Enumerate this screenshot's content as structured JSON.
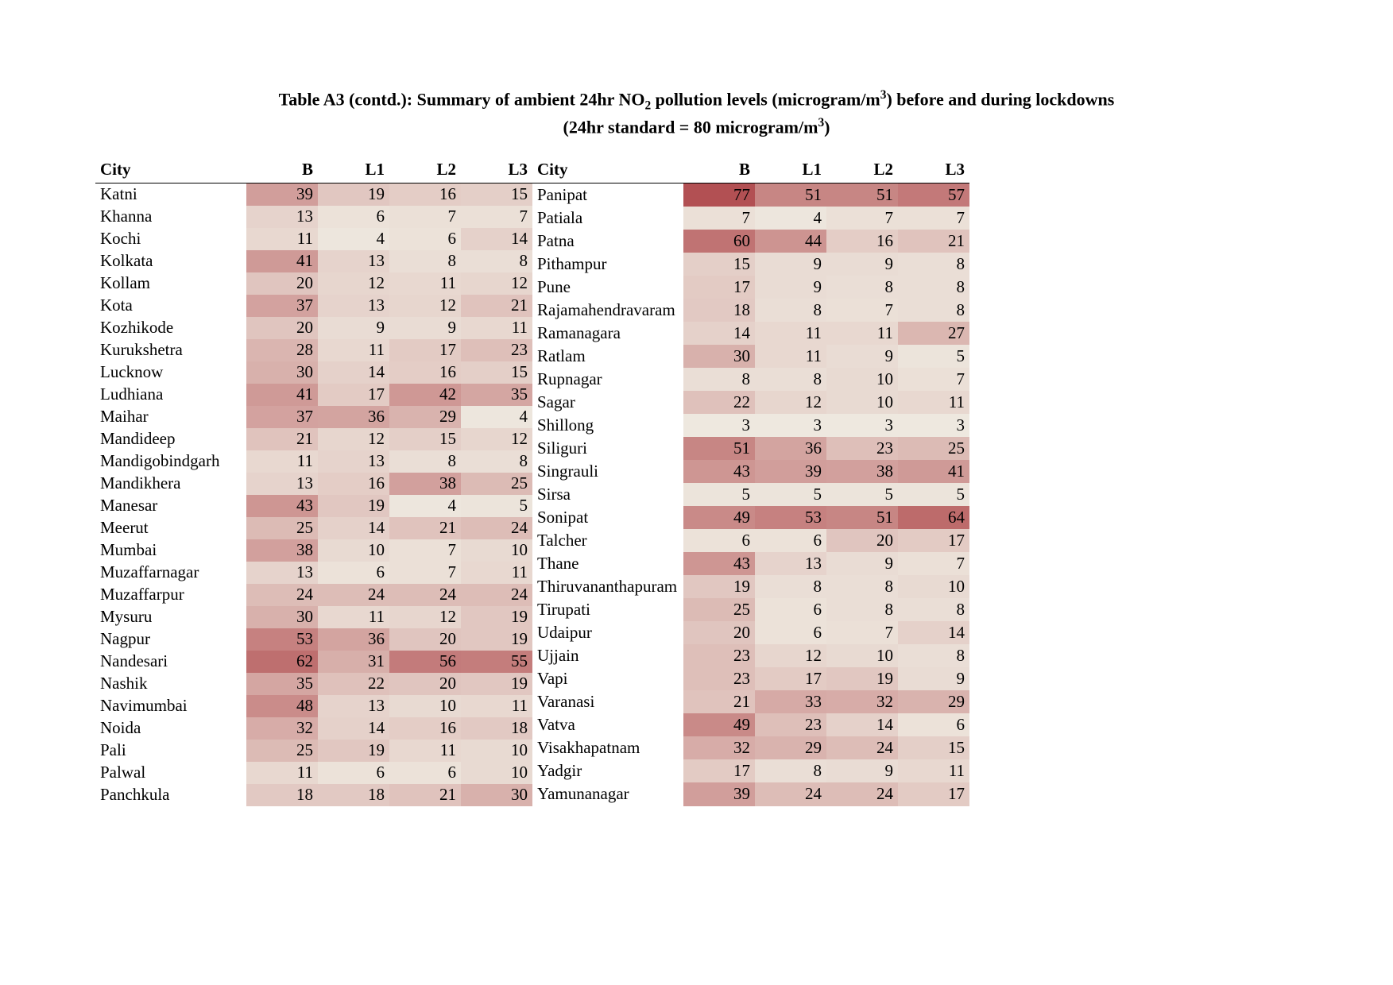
{
  "title_html": "Table A3 (contd.): Summary of ambient 24hr NO<sub>2</sub> pollution levels (microgram/m<sup>3</sup>) before and during lockdowns<br>(24hr standard = 80 microgram/m<sup>3</sup>)",
  "columns": [
    "City",
    "B",
    "L1",
    "L2",
    "L3"
  ],
  "heatmap": {
    "min": 3,
    "max": 80,
    "low_color": "#eee8df",
    "high_color": "#b04a4d"
  },
  "left_rows": [
    {
      "city": "Katni",
      "B": 39,
      "L1": 19,
      "L2": 16,
      "L3": 15
    },
    {
      "city": "Khanna",
      "B": 13,
      "L1": 6,
      "L2": 7,
      "L3": 7
    },
    {
      "city": "Kochi",
      "B": 11,
      "L1": 4,
      "L2": 6,
      "L3": 14
    },
    {
      "city": "Kolkata",
      "B": 41,
      "L1": 13,
      "L2": 8,
      "L3": 8
    },
    {
      "city": "Kollam",
      "B": 20,
      "L1": 12,
      "L2": 11,
      "L3": 12
    },
    {
      "city": "Kota",
      "B": 37,
      "L1": 13,
      "L2": 12,
      "L3": 21
    },
    {
      "city": "Kozhikode",
      "B": 20,
      "L1": 9,
      "L2": 9,
      "L3": 11
    },
    {
      "city": "Kurukshetra",
      "B": 28,
      "L1": 11,
      "L2": 17,
      "L3": 23
    },
    {
      "city": "Lucknow",
      "B": 30,
      "L1": 14,
      "L2": 16,
      "L3": 15
    },
    {
      "city": "Ludhiana",
      "B": 41,
      "L1": 17,
      "L2": 42,
      "L3": 35
    },
    {
      "city": "Maihar",
      "B": 37,
      "L1": 36,
      "L2": 29,
      "L3": 4
    },
    {
      "city": "Mandideep",
      "B": 21,
      "L1": 12,
      "L2": 15,
      "L3": 12
    },
    {
      "city": "Mandigobindgarh",
      "B": 11,
      "L1": 13,
      "L2": 8,
      "L3": 8
    },
    {
      "city": "Mandikhera",
      "B": 13,
      "L1": 16,
      "L2": 38,
      "L3": 25
    },
    {
      "city": "Manesar",
      "B": 43,
      "L1": 19,
      "L2": 4,
      "L3": 5
    },
    {
      "city": "Meerut",
      "B": 25,
      "L1": 14,
      "L2": 21,
      "L3": 24
    },
    {
      "city": "Mumbai",
      "B": 38,
      "L1": 10,
      "L2": 7,
      "L3": 10
    },
    {
      "city": "Muzaffarnagar",
      "B": 13,
      "L1": 6,
      "L2": 7,
      "L3": 11
    },
    {
      "city": "Muzaffarpur",
      "B": 24,
      "L1": 24,
      "L2": 24,
      "L3": 24
    },
    {
      "city": "Mysuru",
      "B": 30,
      "L1": 11,
      "L2": 12,
      "L3": 19
    },
    {
      "city": "Nagpur",
      "B": 53,
      "L1": 36,
      "L2": 20,
      "L3": 19
    },
    {
      "city": "Nandesari",
      "B": 62,
      "L1": 31,
      "L2": 56,
      "L3": 55
    },
    {
      "city": "Nashik",
      "B": 35,
      "L1": 22,
      "L2": 20,
      "L3": 19
    },
    {
      "city": "Navimumbai",
      "B": 48,
      "L1": 13,
      "L2": 10,
      "L3": 11
    },
    {
      "city": "Noida",
      "B": 32,
      "L1": 14,
      "L2": 16,
      "L3": 18
    },
    {
      "city": "Pali",
      "B": 25,
      "L1": 19,
      "L2": 11,
      "L3": 10
    },
    {
      "city": "Palwal",
      "B": 11,
      "L1": 6,
      "L2": 6,
      "L3": 10
    },
    {
      "city": "Panchkula",
      "B": 18,
      "L1": 18,
      "L2": 21,
      "L3": 30
    }
  ],
  "right_rows": [
    {
      "city": "Panipat",
      "B": 77,
      "L1": 51,
      "L2": 51,
      "L3": 57
    },
    {
      "city": "Patiala",
      "B": 7,
      "L1": 4,
      "L2": 7,
      "L3": 7
    },
    {
      "city": "Patna",
      "B": 60,
      "L1": 44,
      "L2": 16,
      "L3": 21
    },
    {
      "city": "Pithampur",
      "B": 15,
      "L1": 9,
      "L2": 9,
      "L3": 8
    },
    {
      "city": "Pune",
      "B": 17,
      "L1": 9,
      "L2": 8,
      "L3": 8
    },
    {
      "city": "Rajamahendravaram",
      "B": 18,
      "L1": 8,
      "L2": 7,
      "L3": 8
    },
    {
      "city": "Ramanagara",
      "B": 14,
      "L1": 11,
      "L2": 11,
      "L3": 27
    },
    {
      "city": "Ratlam",
      "B": 30,
      "L1": 11,
      "L2": 9,
      "L3": 5
    },
    {
      "city": "Rupnagar",
      "B": 8,
      "L1": 8,
      "L2": 10,
      "L3": 7
    },
    {
      "city": "Sagar",
      "B": 22,
      "L1": 12,
      "L2": 10,
      "L3": 11
    },
    {
      "city": "Shillong",
      "B": 3,
      "L1": 3,
      "L2": 3,
      "L3": 3
    },
    {
      "city": "Siliguri",
      "B": 51,
      "L1": 36,
      "L2": 23,
      "L3": 25
    },
    {
      "city": "Singrauli",
      "B": 43,
      "L1": 39,
      "L2": 38,
      "L3": 41
    },
    {
      "city": "Sirsa",
      "B": 5,
      "L1": 5,
      "L2": 5,
      "L3": 5
    },
    {
      "city": "Sonipat",
      "B": 49,
      "L1": 53,
      "L2": 51,
      "L3": 64
    },
    {
      "city": "Talcher",
      "B": 6,
      "L1": 6,
      "L2": 20,
      "L3": 17
    },
    {
      "city": "Thane",
      "B": 43,
      "L1": 13,
      "L2": 9,
      "L3": 7
    },
    {
      "city": "Thiruvananthapuram",
      "B": 19,
      "L1": 8,
      "L2": 8,
      "L3": 10
    },
    {
      "city": "Tirupati",
      "B": 25,
      "L1": 6,
      "L2": 8,
      "L3": 8
    },
    {
      "city": "Udaipur",
      "B": 20,
      "L1": 6,
      "L2": 7,
      "L3": 14
    },
    {
      "city": "Ujjain",
      "B": 23,
      "L1": 12,
      "L2": 10,
      "L3": 8
    },
    {
      "city": "Vapi",
      "B": 23,
      "L1": 17,
      "L2": 19,
      "L3": 9
    },
    {
      "city": "Varanasi",
      "B": 21,
      "L1": 33,
      "L2": 32,
      "L3": 29
    },
    {
      "city": "Vatva",
      "B": 49,
      "L1": 23,
      "L2": 14,
      "L3": 6
    },
    {
      "city": "Visakhapatnam",
      "B": 32,
      "L1": 29,
      "L2": 24,
      "L3": 15
    },
    {
      "city": "Yadgir",
      "B": 17,
      "L1": 8,
      "L2": 9,
      "L3": 11
    },
    {
      "city": "Yamunanagar",
      "B": 39,
      "L1": 24,
      "L2": 24,
      "L3": 17
    }
  ]
}
